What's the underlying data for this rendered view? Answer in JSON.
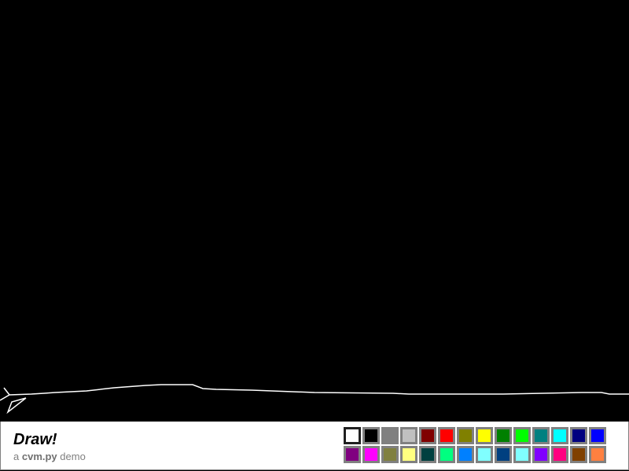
{
  "app": {
    "title": "Draw!",
    "subtitle_prefix": "a",
    "subtitle_brand": "cvm.py",
    "subtitle_suffix": "demo"
  },
  "canvas": {
    "background": "#000000",
    "stroke_color": "#ffffff"
  },
  "palette": {
    "selected": "#ffffff",
    "colors": [
      "#ffffff",
      "#000000",
      "#808080",
      "#c0c0c0",
      "#800000",
      "#ff0000",
      "#808000",
      "#ffff00",
      "#008000",
      "#00ff00",
      "#008080",
      "#00ffff",
      "#000080",
      "#0000ff",
      "#800080",
      "#ff00ff",
      "#808040",
      "#ffff80",
      "#004040",
      "#00ff80",
      "#0080ff",
      "#80ffff",
      "#004080",
      "#80ffff",
      "#8000ff",
      "#ff0080",
      "#804000",
      "#ff8040"
    ]
  }
}
